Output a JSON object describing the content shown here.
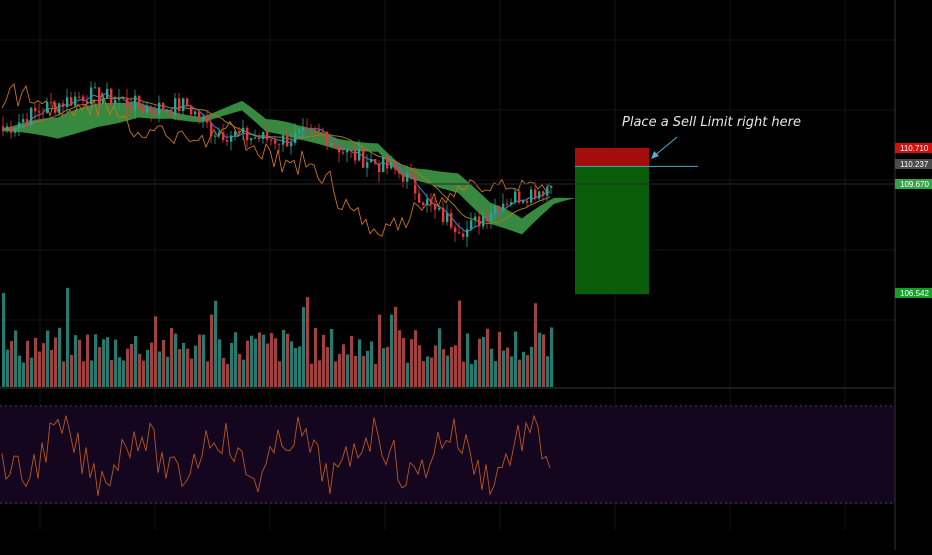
{
  "colors": {
    "background": "#000000",
    "grid": "#151515",
    "up_candle": "#2aa58f",
    "down_candle": "#e03a3a",
    "volume_up": "#2f8f84",
    "volume_down": "#b84c4c",
    "cloud_bull": "#3fa14a",
    "cloud_bear": "#d25a5a",
    "tenkan": "#3b78c9",
    "kijun": "#a07b2c",
    "chikou": "#c8741c",
    "rsi_line": "#b8561e",
    "rsi_band": "#14061f",
    "stop_zone": "#a50d0d",
    "target_zone": "#0a5e0a",
    "entry_line": "#3fa8c8",
    "annotation": "#e8e8e8"
  },
  "annotation": {
    "text": "Place a Sell Limit right here",
    "icon": "arrow-icon"
  },
  "price_tags": [
    {
      "id": "stop",
      "label": "110.710",
      "bg": "#d40f0f",
      "fg": "#ffffff"
    },
    {
      "id": "entry",
      "label": "110.237",
      "bg": "#4a4a4a",
      "fg": "#ffffff"
    },
    {
      "id": "last",
      "label": "109.670",
      "bg": "#33a348",
      "fg": "#ffffff"
    },
    {
      "id": "target",
      "label": "106.542",
      "bg": "#14a028",
      "fg": "#ffffff"
    }
  ],
  "chart_data": {
    "type": "candlestick",
    "title": "",
    "y_range": [
      106.0,
      112.5
    ],
    "levels": {
      "stop_loss": 110.71,
      "entry": 110.237,
      "last_price": 109.67,
      "take_profit": 106.542
    },
    "position": {
      "side": "short"
    },
    "overlays": [
      "ichimoku_cloud",
      "tenkan_sen",
      "kijun_sen",
      "chikou_span"
    ],
    "volume_pane": true,
    "oscillator_pane": {
      "type": "rsi",
      "upper_band": 70,
      "lower_band": 30
    },
    "grid": false
  }
}
